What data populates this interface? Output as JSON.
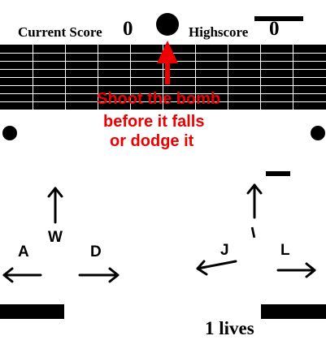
{
  "hud": {
    "current_score_label": "Current Score",
    "current_score_value": "0",
    "highscore_label": "Highscore",
    "highscore_value": "0",
    "lives_text": "1 lives"
  },
  "instructions": {
    "line1": "Shoot the bomb",
    "line2": "before it falls",
    "line3": "or dodge it"
  },
  "controls": {
    "left_player": {
      "up": "W",
      "left": "A",
      "right": "D"
    },
    "right_player": {
      "up": "I",
      "left": "J",
      "right": "L"
    }
  },
  "colors": {
    "background": "#ffffff",
    "foreground": "#000000",
    "instruction": "#ee0000",
    "grid_lines": "#ffffff"
  },
  "icons": {
    "bomb": "bomb-icon",
    "pointer": "up-arrow-icon"
  }
}
